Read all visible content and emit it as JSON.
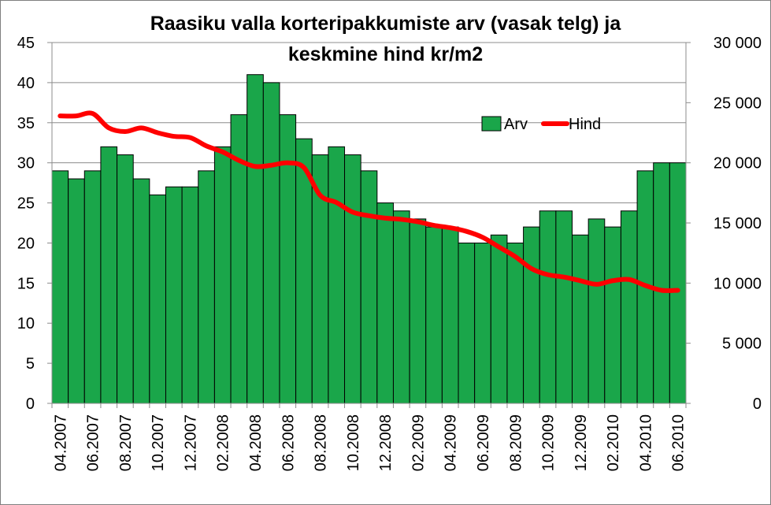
{
  "chart_data": {
    "type": "bar+line",
    "title_line1": "Raasiku valla korteripakkumiste arv (vasak telg) ja",
    "title_line2": "keskmine hind kr/m2",
    "categories": [
      "04.2007",
      "05.2007",
      "06.2007",
      "07.2007",
      "08.2007",
      "09.2007",
      "10.2007",
      "11.2007",
      "12.2007",
      "01.2008",
      "02.2008",
      "03.2008",
      "04.2008",
      "05.2008",
      "06.2008",
      "07.2008",
      "08.2008",
      "09.2008",
      "10.2008",
      "11.2008",
      "12.2008",
      "01.2009",
      "02.2009",
      "03.2009",
      "04.2009",
      "05.2009",
      "06.2009",
      "07.2009",
      "08.2009",
      "09.2009",
      "10.2009",
      "11.2009",
      "12.2009",
      "01.2010",
      "02.2010",
      "03.2010",
      "04.2010",
      "05.2010",
      "06.2010"
    ],
    "x_tick_labels": [
      "04.2007",
      "06.2007",
      "08.2007",
      "10.2007",
      "12.2007",
      "02.2008",
      "04.2008",
      "06.2008",
      "08.2008",
      "10.2008",
      "12.2008",
      "02.2009",
      "04.2009",
      "06.2009",
      "08.2009",
      "10.2009",
      "12.2009",
      "02.2010",
      "04.2010",
      "06.2010"
    ],
    "series": [
      {
        "name": "Arv",
        "type": "bar",
        "axis": "left",
        "color": "#1aa64a",
        "values": [
          29,
          28,
          29,
          32,
          31,
          28,
          26,
          27,
          27,
          29,
          32,
          36,
          41,
          40,
          36,
          33,
          31,
          32,
          31,
          29,
          25,
          24,
          23,
          22,
          22,
          20,
          20,
          21,
          20,
          22,
          24,
          24,
          21,
          23,
          22,
          24,
          29,
          30,
          30
        ]
      },
      {
        "name": "Hind",
        "type": "line",
        "axis": "right",
        "color": "#ff0000",
        "values": [
          23900,
          23900,
          24100,
          22900,
          22600,
          22900,
          22500,
          22200,
          22100,
          21400,
          20900,
          20200,
          19700,
          19800,
          20000,
          19600,
          17300,
          16700,
          15900,
          15600,
          15400,
          15300,
          15100,
          14800,
          14600,
          14300,
          13800,
          13000,
          12200,
          11200,
          10700,
          10500,
          10200,
          9900,
          10200,
          10300,
          9800,
          9400,
          9400
        ]
      }
    ],
    "y_left": {
      "min": 0,
      "max": 45,
      "step": 5,
      "tick_labels": [
        "0",
        "5",
        "10",
        "15",
        "20",
        "25",
        "30",
        "35",
        "40",
        "45"
      ]
    },
    "y_right": {
      "min": 0,
      "max": 30000,
      "step": 5000,
      "tick_labels": [
        "0",
        "5 000",
        "10 000",
        "15 000",
        "20 000",
        "25 000",
        "30 000"
      ]
    },
    "grid": true,
    "legend_position": "top-right"
  }
}
